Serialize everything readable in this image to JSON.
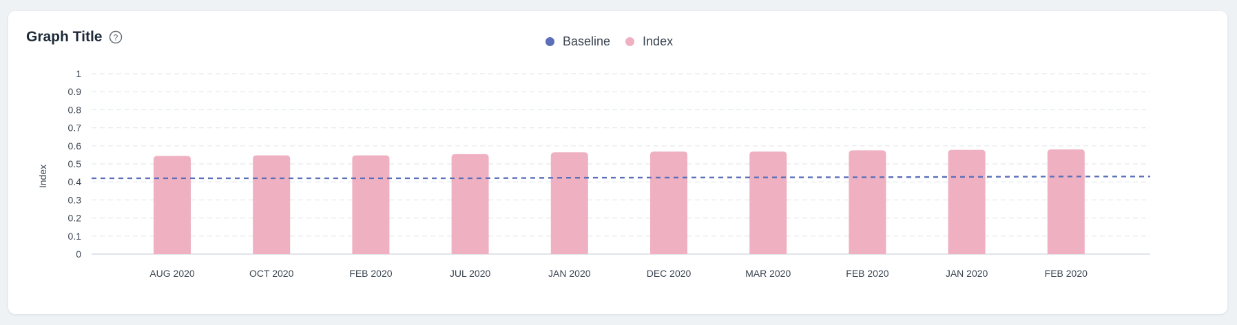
{
  "header": {
    "title": "Graph Title",
    "help_icon": "question-circle-icon"
  },
  "colors": {
    "baseline": "#5b6fb8",
    "index": "#efb1c1",
    "grid": "#e4e7ea",
    "axis": "#d7dbe0",
    "text": "#3a4450"
  },
  "chart_data": {
    "type": "bar",
    "title": "Graph Title",
    "xlabel": "",
    "ylabel": "Index",
    "ylim": [
      0,
      1
    ],
    "yticks": [
      "0",
      "0.1",
      "0.2",
      "0.3",
      "0.4",
      "0.5",
      "0.6",
      "0.7",
      "0.8",
      "0.9",
      "1"
    ],
    "grid": true,
    "legend_position": "top-center",
    "categories": [
      "AUG 2020",
      "OCT 2020",
      "FEB 2020",
      "JUL 2020",
      "JAN 2020",
      "DEC 2020",
      "MAR 2020",
      "FEB 2020",
      "JAN 2020",
      "FEB 2020"
    ],
    "series": [
      {
        "name": "Baseline",
        "type": "dashed-line",
        "values": [
          0.42,
          0.42,
          0.42,
          0.42,
          0.423,
          0.424,
          0.425,
          0.426,
          0.428,
          0.43
        ]
      },
      {
        "name": "Index",
        "type": "bar",
        "values": [
          0.544,
          0.547,
          0.547,
          0.554,
          0.564,
          0.568,
          0.568,
          0.575,
          0.578,
          0.58
        ]
      }
    ]
  }
}
